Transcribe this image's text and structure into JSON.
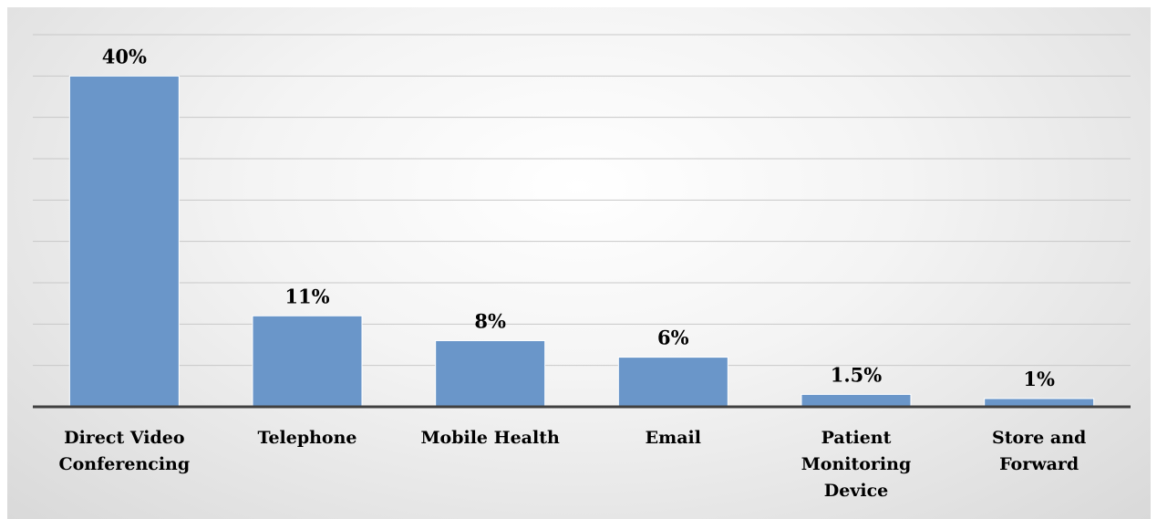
{
  "chart_data": {
    "type": "bar",
    "categories": [
      "Direct Video Conferencing",
      "Telephone",
      "Mobile Health",
      "Email",
      "Patient Monitoring Device",
      "Store and Forward"
    ],
    "values": [
      40,
      11,
      8,
      6,
      1.5,
      1
    ],
    "value_labels": [
      "40%",
      "11%",
      "8%",
      "6%",
      "1.5%",
      "1%"
    ],
    "color": "#6a96c9",
    "ylim": [
      0,
      45
    ],
    "gridlines": [
      5,
      10,
      15,
      20,
      25,
      30,
      35,
      40,
      45
    ],
    "grid": true
  }
}
